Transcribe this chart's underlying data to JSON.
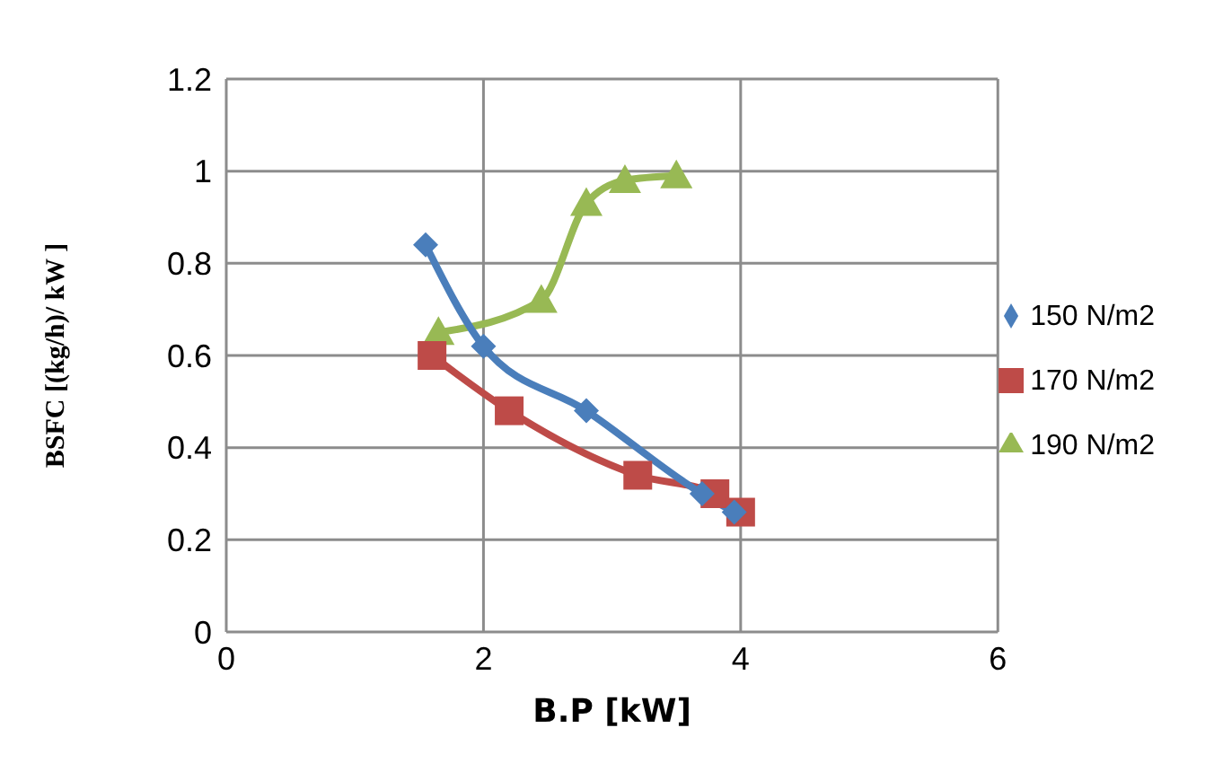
{
  "chart_data": {
    "type": "line",
    "xlabel": "B.P [kW]",
    "ylabel": "BSFC [(kg/h)/ kW ]",
    "xlim": [
      0,
      6
    ],
    "xticks": [
      0,
      2,
      4,
      6
    ],
    "ylim": [
      0,
      1.2
    ],
    "yticks": [
      0,
      0.2,
      0.4,
      0.6,
      0.8,
      1,
      1.2
    ],
    "grid": true,
    "legend": "right",
    "series": [
      {
        "name": "150 N/m2",
        "color": "#4a7ebb",
        "marker": "diamond",
        "x": [
          1.55,
          2.0,
          2.8,
          3.7,
          3.95
        ],
        "values": [
          0.84,
          0.62,
          0.48,
          0.3,
          0.26
        ]
      },
      {
        "name": "170 N/m2",
        "color": "#be4b48",
        "marker": "square",
        "x": [
          1.6,
          2.2,
          3.2,
          3.8,
          4.0
        ],
        "values": [
          0.6,
          0.48,
          0.34,
          0.3,
          0.26
        ]
      },
      {
        "name": "190 N/m2",
        "color": "#98b954",
        "marker": "triangle",
        "x": [
          1.65,
          2.45,
          2.8,
          3.1,
          3.5
        ],
        "values": [
          0.65,
          0.72,
          0.93,
          0.98,
          0.99
        ]
      }
    ]
  }
}
